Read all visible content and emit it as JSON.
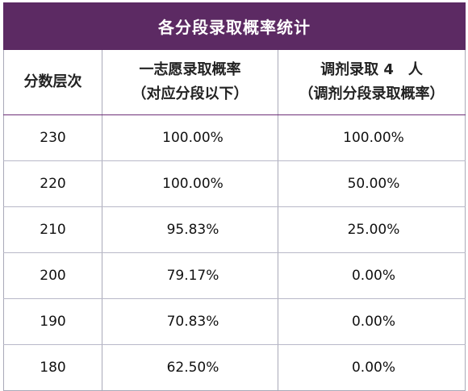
{
  "table": {
    "title": "各分段录取概率统计",
    "headers": {
      "col1": "分数层次",
      "col2_line1": "一志愿录取概率",
      "col2_line2": "（对应分段以下）",
      "col3_line1": "调剂录取 4　人",
      "col3_line2": "（调剂分段录取概率）"
    },
    "rows": [
      {
        "score": "230",
        "first_choice": "100.00%",
        "adjust": "100.00%"
      },
      {
        "score": "220",
        "first_choice": "100.00%",
        "adjust": "50.00%"
      },
      {
        "score": "210",
        "first_choice": "95.83%",
        "adjust": "25.00%"
      },
      {
        "score": "200",
        "first_choice": "79.17%",
        "adjust": "0.00%"
      },
      {
        "score": "190",
        "first_choice": "70.83%",
        "adjust": "0.00%"
      },
      {
        "score": "180",
        "first_choice": "62.50%",
        "adjust": "0.00%"
      }
    ]
  }
}
